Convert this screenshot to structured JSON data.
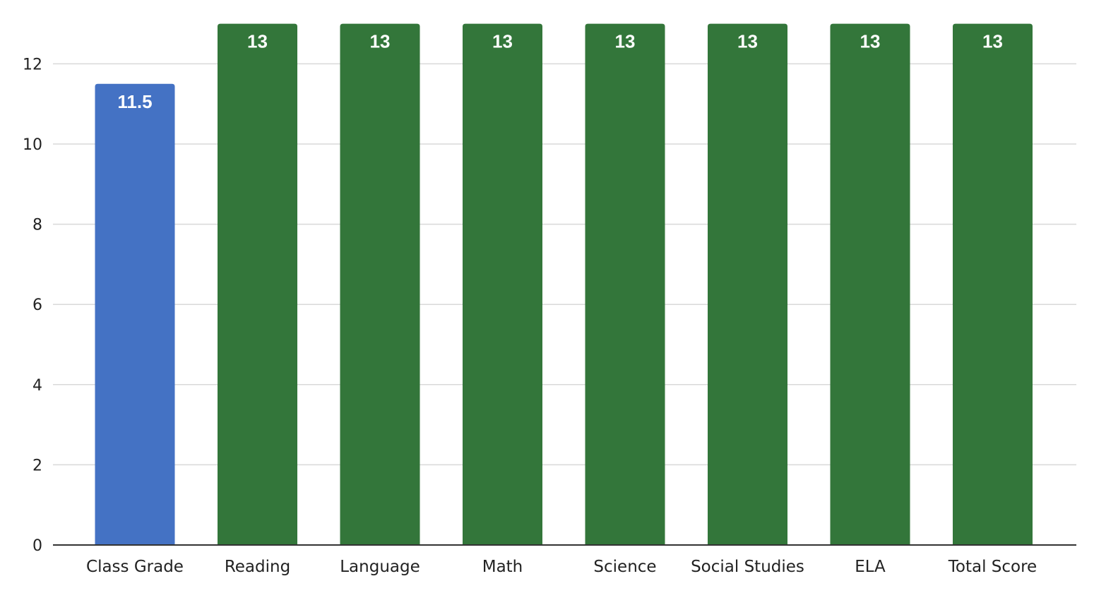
{
  "chart_data": {
    "type": "bar",
    "categories": [
      "Class Grade",
      "Reading",
      "Language",
      "Math",
      "Science",
      "Social Studies",
      "ELA",
      "Total Score"
    ],
    "values": [
      11.5,
      13,
      13,
      13,
      13,
      13,
      13,
      13
    ],
    "data_labels": [
      "11.5",
      "13",
      "13",
      "13",
      "13",
      "13",
      "13",
      "13"
    ],
    "bar_colors": [
      "#4472c4",
      "#33763a",
      "#33763a",
      "#33763a",
      "#33763a",
      "#33763a",
      "#33763a",
      "#33763a"
    ],
    "title": "",
    "xlabel": "",
    "ylabel": "",
    "ylim": [
      0,
      13
    ],
    "yticks": [
      0,
      2,
      4,
      6,
      8,
      10,
      12
    ],
    "grid": true,
    "legend": "none"
  }
}
